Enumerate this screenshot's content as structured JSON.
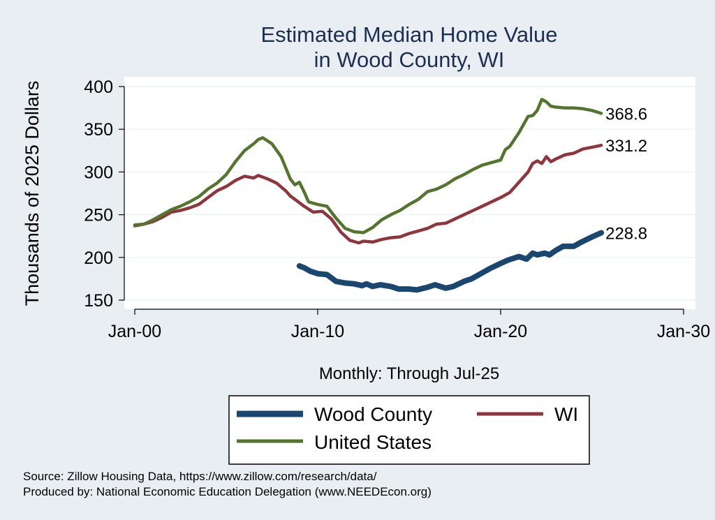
{
  "chart_data": {
    "type": "line",
    "title": [
      "Estimated Median Home Value",
      "in Wood County, WI"
    ],
    "xlabel": "Monthly: Through Jul-25",
    "ylabel": "Thousands of 2025 Dollars",
    "x_tick_labels": [
      "Jan-00",
      "Jan-10",
      "Jan-20",
      "Jan-30"
    ],
    "x_tick_years": [
      2000,
      2010,
      2020,
      2030
    ],
    "xlim": [
      2000,
      2030
    ],
    "y_ticks": [
      150,
      200,
      250,
      300,
      350,
      400
    ],
    "ylim": [
      142,
      408
    ],
    "grid": "horizontal",
    "legend_position": "bottom",
    "series": [
      {
        "name": "Wood County",
        "color": "#1a476f",
        "end_label": "228.8",
        "points": [
          [
            "2009-01",
            190
          ],
          [
            "2009-04",
            188
          ],
          [
            "2009-08",
            184
          ],
          [
            "2010-01",
            181
          ],
          [
            "2010-07",
            180
          ],
          [
            "2011-01",
            172
          ],
          [
            "2011-07",
            170
          ],
          [
            "2012-01",
            169
          ],
          [
            "2012-06",
            167
          ],
          [
            "2012-09",
            169
          ],
          [
            "2013-01",
            166
          ],
          [
            "2013-06",
            168
          ],
          [
            "2014-01",
            166
          ],
          [
            "2014-06",
            163
          ],
          [
            "2015-01",
            163
          ],
          [
            "2015-06",
            162
          ],
          [
            "2016-01",
            165
          ],
          [
            "2016-06",
            168
          ],
          [
            "2017-01",
            164
          ],
          [
            "2017-06",
            166
          ],
          [
            "2018-01",
            172
          ],
          [
            "2018-06",
            175
          ],
          [
            "2019-01",
            182
          ],
          [
            "2019-06",
            187
          ],
          [
            "2020-01",
            193
          ],
          [
            "2020-06",
            197
          ],
          [
            "2021-01",
            201
          ],
          [
            "2021-06",
            198
          ],
          [
            "2021-10",
            205
          ],
          [
            "2022-01",
            203
          ],
          [
            "2022-06",
            205
          ],
          [
            "2022-09",
            203
          ],
          [
            "2023-01",
            208
          ],
          [
            "2023-06",
            213
          ],
          [
            "2024-01",
            213
          ],
          [
            "2024-06",
            218
          ],
          [
            "2025-01",
            224
          ],
          [
            "2025-07",
            228.8
          ]
        ]
      },
      {
        "name": "WI",
        "color": "#90353b",
        "end_label": "331.2",
        "points": [
          [
            "2000-01",
            237
          ],
          [
            "2000-07",
            239
          ],
          [
            "2001-01",
            242
          ],
          [
            "2001-07",
            247
          ],
          [
            "2002-01",
            253
          ],
          [
            "2002-07",
            255
          ],
          [
            "2003-01",
            258
          ],
          [
            "2003-07",
            262
          ],
          [
            "2004-01",
            270
          ],
          [
            "2004-07",
            278
          ],
          [
            "2005-01",
            283
          ],
          [
            "2005-07",
            290
          ],
          [
            "2006-01",
            295
          ],
          [
            "2006-07",
            293
          ],
          [
            "2006-10",
            296
          ],
          [
            "2007-04",
            292
          ],
          [
            "2007-10",
            287
          ],
          [
            "2008-04",
            278
          ],
          [
            "2008-07",
            272
          ],
          [
            "2008-10",
            268
          ],
          [
            "2009-04",
            260
          ],
          [
            "2009-10",
            253
          ],
          [
            "2010-04",
            254
          ],
          [
            "2010-10",
            245
          ],
          [
            "2011-04",
            230
          ],
          [
            "2011-10",
            220
          ],
          [
            "2012-04",
            217
          ],
          [
            "2012-07",
            219
          ],
          [
            "2013-01",
            218
          ],
          [
            "2013-07",
            221
          ],
          [
            "2014-01",
            223
          ],
          [
            "2014-07",
            224
          ],
          [
            "2015-01",
            228
          ],
          [
            "2015-07",
            231
          ],
          [
            "2016-01",
            234
          ],
          [
            "2016-07",
            239
          ],
          [
            "2017-01",
            240
          ],
          [
            "2017-07",
            245
          ],
          [
            "2018-01",
            250
          ],
          [
            "2018-07",
            255
          ],
          [
            "2019-01",
            260
          ],
          [
            "2019-07",
            265
          ],
          [
            "2020-01",
            270
          ],
          [
            "2020-07",
            276
          ],
          [
            "2021-01",
            288
          ],
          [
            "2021-07",
            300
          ],
          [
            "2021-10",
            310
          ],
          [
            "2022-01",
            313
          ],
          [
            "2022-04",
            310
          ],
          [
            "2022-07",
            318
          ],
          [
            "2022-10",
            312
          ],
          [
            "2023-01",
            315
          ],
          [
            "2023-07",
            320
          ],
          [
            "2024-01",
            322
          ],
          [
            "2024-07",
            327
          ],
          [
            "2025-01",
            329
          ],
          [
            "2025-07",
            331.2
          ]
        ]
      },
      {
        "name": "United States",
        "color": "#55752f",
        "end_label": "368.6",
        "points": [
          [
            "2000-01",
            238
          ],
          [
            "2000-07",
            239
          ],
          [
            "2001-01",
            244
          ],
          [
            "2001-07",
            250
          ],
          [
            "2002-01",
            256
          ],
          [
            "2002-07",
            260
          ],
          [
            "2003-01",
            265
          ],
          [
            "2003-07",
            271
          ],
          [
            "2004-01",
            280
          ],
          [
            "2004-07",
            287
          ],
          [
            "2005-01",
            297
          ],
          [
            "2005-07",
            312
          ],
          [
            "2006-01",
            325
          ],
          [
            "2006-07",
            333
          ],
          [
            "2006-10",
            338
          ],
          [
            "2007-01",
            340
          ],
          [
            "2007-07",
            333
          ],
          [
            "2008-01",
            318
          ],
          [
            "2008-07",
            292
          ],
          [
            "2008-10",
            285
          ],
          [
            "2009-01",
            288
          ],
          [
            "2009-04",
            277
          ],
          [
            "2009-07",
            265
          ],
          [
            "2010-01",
            262
          ],
          [
            "2010-07",
            260
          ],
          [
            "2011-01",
            246
          ],
          [
            "2011-07",
            234
          ],
          [
            "2012-01",
            230
          ],
          [
            "2012-07",
            229
          ],
          [
            "2013-01",
            235
          ],
          [
            "2013-07",
            244
          ],
          [
            "2014-01",
            250
          ],
          [
            "2014-07",
            255
          ],
          [
            "2015-01",
            262
          ],
          [
            "2015-07",
            268
          ],
          [
            "2016-01",
            277
          ],
          [
            "2016-07",
            280
          ],
          [
            "2017-01",
            285
          ],
          [
            "2017-07",
            292
          ],
          [
            "2018-01",
            297
          ],
          [
            "2018-07",
            303
          ],
          [
            "2019-01",
            308
          ],
          [
            "2019-07",
            311
          ],
          [
            "2020-01",
            314
          ],
          [
            "2020-04",
            326
          ],
          [
            "2020-07",
            330
          ],
          [
            "2021-01",
            346
          ],
          [
            "2021-07",
            365
          ],
          [
            "2021-10",
            366
          ],
          [
            "2022-01",
            372
          ],
          [
            "2022-04",
            385
          ],
          [
            "2022-07",
            382
          ],
          [
            "2022-10",
            377
          ],
          [
            "2023-01",
            376
          ],
          [
            "2023-07",
            375
          ],
          [
            "2024-01",
            375
          ],
          [
            "2024-07",
            374
          ],
          [
            "2025-01",
            372
          ],
          [
            "2025-07",
            368.6
          ]
        ]
      }
    ]
  },
  "legend": [
    "Wood County",
    "WI",
    "United States"
  ],
  "source_lines": [
    "Source: Zillow Housing Data, https://www.zillow.com/research/data/",
    "Produced by: National Economic Education Delegation (www.NEEDEcon.org)"
  ]
}
